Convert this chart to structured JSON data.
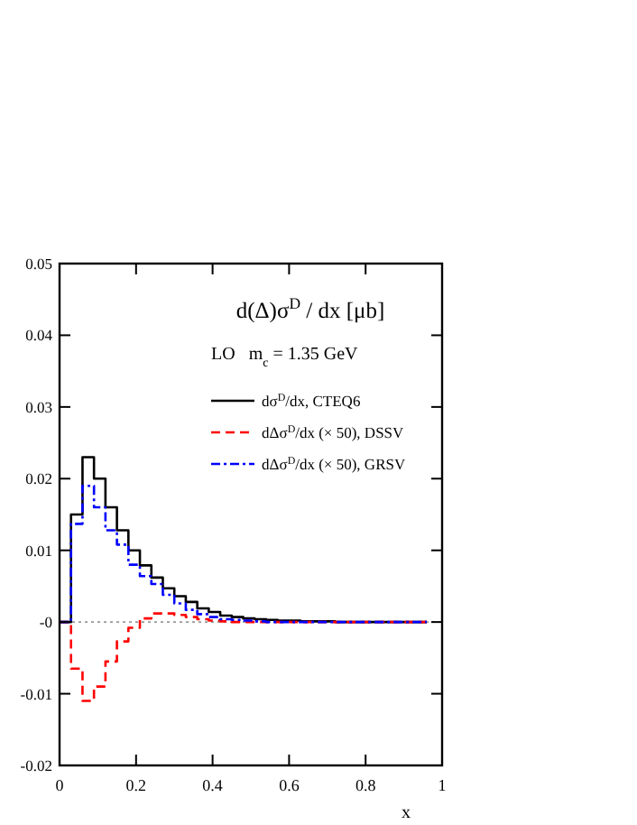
{
  "chart_data": {
    "type": "histogram",
    "title": "d(Δ)σ$^{D}$ / dx [μb]",
    "subtitle": "LO   m$_{c}$ = 1.35 GeV",
    "xlabel": "x",
    "bins": [
      0,
      0.03,
      0.06,
      0.09,
      0.12,
      0.15,
      0.18,
      0.21,
      0.24,
      0.27,
      0.3,
      0.33,
      0.36,
      0.39,
      0.42,
      0.45,
      0.48,
      0.51,
      0.54,
      0.57,
      0.6,
      0.63,
      0.66,
      0.69,
      0.72,
      0.75,
      0.78,
      0.81,
      0.84,
      0.87,
      0.9,
      0.93,
      0.96
    ],
    "series": [
      {
        "name": "dσ$^{D}$/dx, CTEQ6",
        "color": "#000000",
        "line_style": "solid",
        "values": [
          0,
          0.015,
          0.023,
          0.02,
          0.016,
          0.0128,
          0.01,
          0.0079,
          0.0062,
          0.0047,
          0.0036,
          0.0028,
          0.0019,
          0.0014,
          0.0009,
          0.0007,
          0.0005,
          0.0004,
          0.0003,
          0.0002,
          0.0002,
          0.0001,
          0.0001,
          0.0001,
          0,
          0,
          0,
          0,
          0,
          0,
          0,
          0
        ]
      },
      {
        "name": "dΔσ$^{D}$/dx (× 50), DSSV",
        "color": "#ff0000",
        "line_style": "dashed",
        "values": [
          0,
          -0.0065,
          -0.011,
          -0.009,
          -0.0055,
          -0.0027,
          -0.0008,
          0.0005,
          0.0012,
          0.0012,
          0.001,
          0.0007,
          0.0004,
          0.0002,
          0.0001,
          0,
          0,
          0,
          0,
          0,
          0,
          0,
          0,
          0,
          0,
          0,
          0,
          0,
          0,
          0,
          0,
          0
        ]
      },
      {
        "name": "dΔσ$^{D}$/dx (× 50), GRSV",
        "color": "#0000ff",
        "line_style": "dashdot",
        "values": [
          0,
          0.0137,
          0.019,
          0.016,
          0.0128,
          0.0108,
          0.008,
          0.0064,
          0.0053,
          0.0038,
          0.0026,
          0.0017,
          0.0011,
          0.0007,
          0.0004,
          0.0003,
          0.0002,
          0.0001,
          0,
          0,
          0,
          0,
          0,
          0,
          0,
          0,
          0,
          0,
          0,
          0,
          0,
          0
        ]
      }
    ],
    "xlim": [
      0,
      1
    ],
    "xticks": [
      0,
      0.2,
      0.4,
      0.6,
      0.8,
      1
    ],
    "ylim": [
      -0.02,
      0.05
    ],
    "yticks": [
      -0.02,
      -0.01,
      {
        "value": 0,
        "label": "-0"
      },
      0.01,
      0.02,
      0.03,
      0.04,
      0.05
    ],
    "ref_lines": [
      {
        "axis": "y",
        "value": 0,
        "color": "#999999",
        "line_style": "dotted"
      }
    ],
    "legend": "top right",
    "grid": false
  }
}
